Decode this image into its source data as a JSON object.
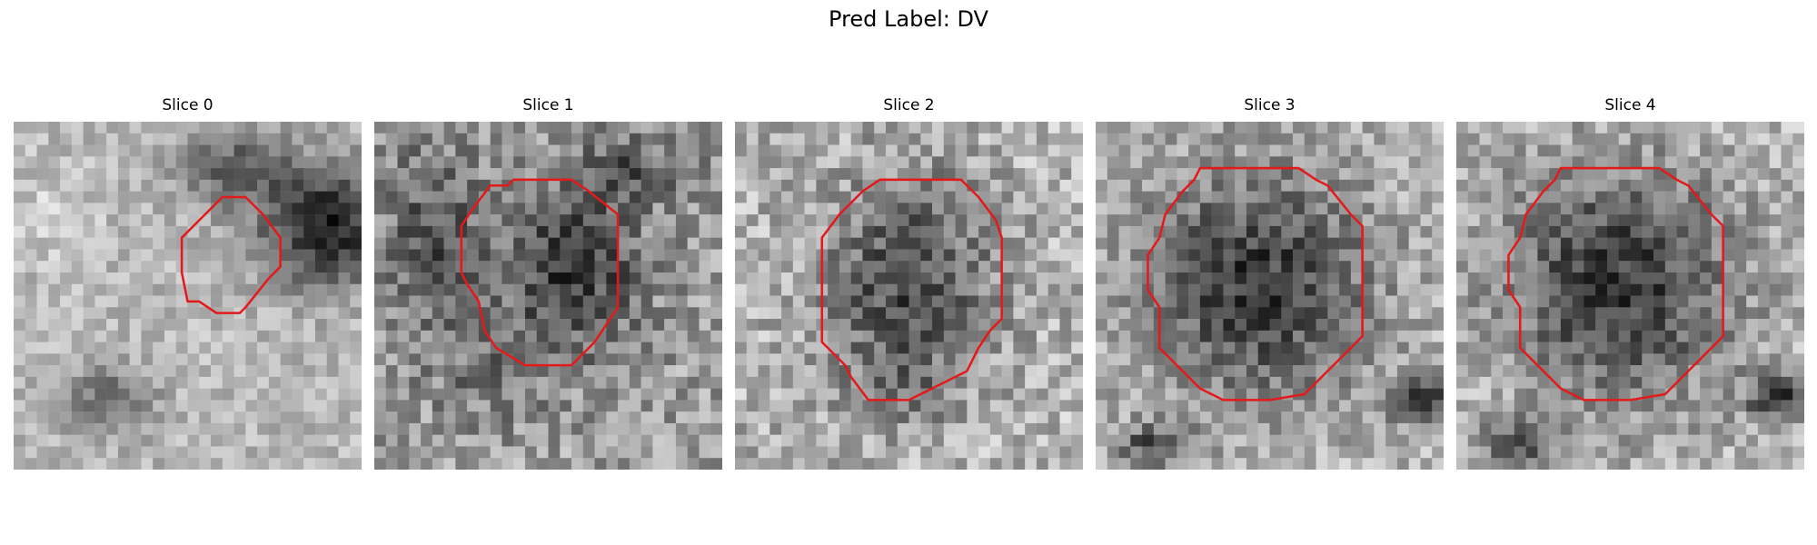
{
  "figure": {
    "suptitle": "Pred Label: DV"
  },
  "panels": [
    {
      "title": "Slice 0"
    },
    {
      "title": "Slice 1"
    },
    {
      "title": "Slice 2"
    },
    {
      "title": "Slice 3"
    },
    {
      "title": "Slice 4"
    }
  ],
  "colors": {
    "contour": "#e31a1c",
    "background": "#ffffff"
  }
}
